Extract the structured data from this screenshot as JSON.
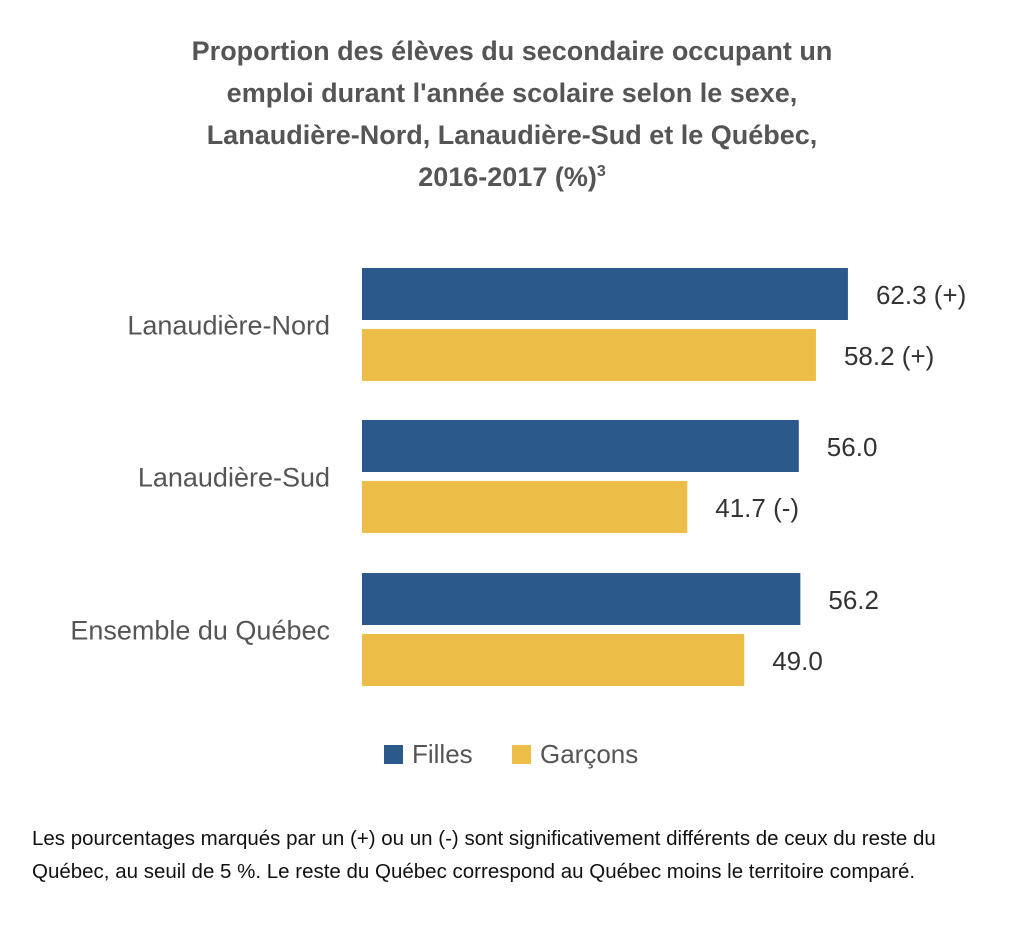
{
  "colors": {
    "filles": "#2B5A8A",
    "garcons": "#EDBE47",
    "title": "#555555",
    "category_text": "#555555",
    "value_text": "#333333"
  },
  "chart_data": {
    "type": "bar",
    "orientation": "horizontal",
    "title": "Proportion des élèves du secondaire occupant un emploi durant l'année scolaire selon le sexe, Lanaudière-Nord, Lanaudière-Sud et le Québec, 2016-2017 (%)",
    "title_lines": [
      "Proportion des élèves du secondaire occupant un",
      "emploi durant l'année scolaire selon le sexe,",
      "Lanaudière-Nord, Lanaudière-Sud et le Québec,",
      "2016-2017 (%)"
    ],
    "title_superscript": "3",
    "categories": [
      "Lanaudière-Nord",
      "Lanaudière-Sud",
      "Ensemble du Québec"
    ],
    "series": [
      {
        "name": "Filles",
        "values": [
          62.3,
          56.0,
          56.2
        ],
        "labels": [
          "62.3 (+)",
          "56.0",
          "56.2"
        ]
      },
      {
        "name": "Garçons",
        "values": [
          58.2,
          41.7,
          49.0
        ],
        "labels": [
          "58.2 (+)",
          "41.7 (-)",
          "49.0"
        ]
      }
    ],
    "xlim": [
      0,
      100
    ],
    "grid": false,
    "legend_position": "bottom"
  },
  "footnote": "Les pourcentages marqués par un (+) ou un (-) sont significativement différents de ceux du reste du Québec, au seuil de 5 %. Le reste du Québec correspond au Québec moins le territoire comparé."
}
